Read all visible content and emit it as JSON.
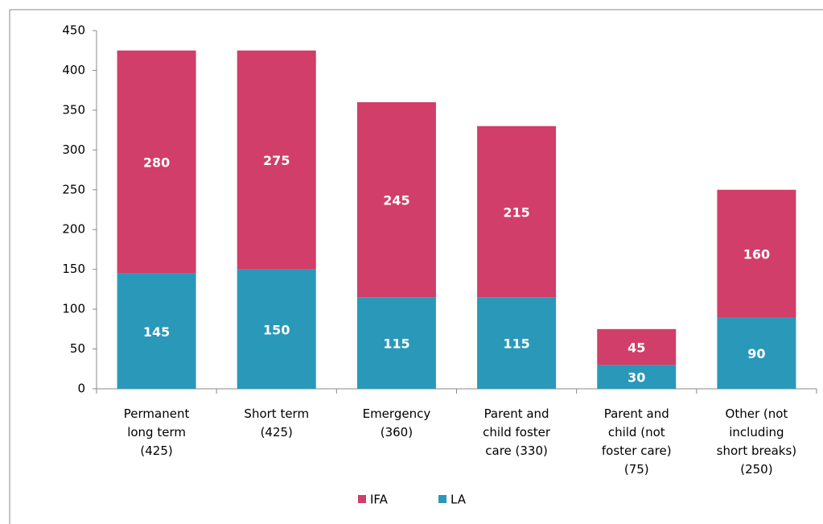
{
  "chart_data": {
    "type": "stacked_bar",
    "categories": [
      "Permanent\nlong term\n(425)",
      "Short term\n(425)",
      "Emergency\n(360)",
      "Parent and\nchild foster\ncare (330)",
      "Parent and\nchild (not\nfoster care)\n(75)",
      "Other (not\nincluding\nshort breaks)\n(250)"
    ],
    "series": [
      {
        "name": "LA",
        "color": "#2a98b9",
        "values": [
          145,
          150,
          115,
          115,
          30,
          90
        ]
      },
      {
        "name": "IFA",
        "color": "#d03e69",
        "values": [
          280,
          275,
          245,
          215,
          45,
          160
        ]
      }
    ],
    "ylim": [
      0,
      450
    ],
    "yticks": [
      0,
      50,
      100,
      150,
      200,
      250,
      300,
      350,
      400,
      450
    ]
  }
}
